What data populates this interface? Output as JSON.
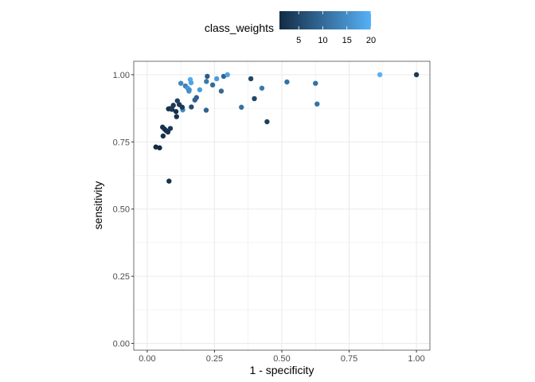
{
  "chart_data": {
    "type": "scatter",
    "xlabel": "1 - specificity",
    "ylabel": "sensitivity",
    "xlim": [
      -0.05,
      1.05
    ],
    "ylim": [
      -0.025,
      1.05
    ],
    "xticks": [
      "0.00",
      "0.25",
      "0.50",
      "0.75",
      "1.00"
    ],
    "yticks": [
      "0.00",
      "0.25",
      "0.50",
      "0.75",
      "1.00"
    ],
    "grid": true,
    "legend": {
      "title": "class_weights",
      "position": "top",
      "ticks": [
        "5",
        "10",
        "15",
        "20"
      ],
      "range": [
        1,
        20
      ],
      "low_color": "#132B43",
      "high_color": "#56B1F7"
    },
    "points": [
      {
        "x": 0.125,
        "y": 0.968,
        "w": 14
      },
      {
        "x": 0.16,
        "y": 0.982,
        "w": 19
      },
      {
        "x": 0.163,
        "y": 0.97,
        "w": 18
      },
      {
        "x": 0.142,
        "y": 0.958,
        "w": 13
      },
      {
        "x": 0.15,
        "y": 0.95,
        "w": 16
      },
      {
        "x": 0.156,
        "y": 0.944,
        "w": 16
      },
      {
        "x": 0.155,
        "y": 0.939,
        "w": 15
      },
      {
        "x": 0.195,
        "y": 0.944,
        "w": 17
      },
      {
        "x": 0.223,
        "y": 0.994,
        "w": 8
      },
      {
        "x": 0.22,
        "y": 0.975,
        "w": 12
      },
      {
        "x": 0.243,
        "y": 0.962,
        "w": 10
      },
      {
        "x": 0.258,
        "y": 0.985,
        "w": 17
      },
      {
        "x": 0.284,
        "y": 0.994,
        "w": 9
      },
      {
        "x": 0.298,
        "y": 1.0,
        "w": 18
      },
      {
        "x": 0.275,
        "y": 0.939,
        "w": 10
      },
      {
        "x": 0.385,
        "y": 0.985,
        "w": 5
      },
      {
        "x": 0.426,
        "y": 0.95,
        "w": 12
      },
      {
        "x": 0.398,
        "y": 0.911,
        "w": 5
      },
      {
        "x": 0.35,
        "y": 0.879,
        "w": 11
      },
      {
        "x": 0.445,
        "y": 0.825,
        "w": 4
      },
      {
        "x": 0.177,
        "y": 0.906,
        "w": 9
      },
      {
        "x": 0.183,
        "y": 0.915,
        "w": 9
      },
      {
        "x": 0.164,
        "y": 0.88,
        "w": 6
      },
      {
        "x": 0.219,
        "y": 0.868,
        "w": 9
      },
      {
        "x": 0.132,
        "y": 0.869,
        "w": 15
      },
      {
        "x": 0.13,
        "y": 0.879,
        "w": 3
      },
      {
        "x": 0.112,
        "y": 0.903,
        "w": 4
      },
      {
        "x": 0.119,
        "y": 0.889,
        "w": 3
      },
      {
        "x": 0.097,
        "y": 0.886,
        "w": 3
      },
      {
        "x": 0.085,
        "y": 0.874,
        "w": 3
      },
      {
        "x": 0.079,
        "y": 0.873,
        "w": 2
      },
      {
        "x": 0.092,
        "y": 0.871,
        "w": 3
      },
      {
        "x": 0.107,
        "y": 0.863,
        "w": 2
      },
      {
        "x": 0.109,
        "y": 0.844,
        "w": 2
      },
      {
        "x": 0.057,
        "y": 0.805,
        "w": 2
      },
      {
        "x": 0.064,
        "y": 0.798,
        "w": 2
      },
      {
        "x": 0.07,
        "y": 0.792,
        "w": 2
      },
      {
        "x": 0.077,
        "y": 0.787,
        "w": 2
      },
      {
        "x": 0.086,
        "y": 0.8,
        "w": 3
      },
      {
        "x": 0.059,
        "y": 0.772,
        "w": 2
      },
      {
        "x": 0.032,
        "y": 0.731,
        "w": 1
      },
      {
        "x": 0.046,
        "y": 0.728,
        "w": 1
      },
      {
        "x": 0.081,
        "y": 0.604,
        "w": 2
      },
      {
        "x": 0.625,
        "y": 0.968,
        "w": 11
      },
      {
        "x": 0.631,
        "y": 0.891,
        "w": 11
      },
      {
        "x": 0.519,
        "y": 0.973,
        "w": 11
      },
      {
        "x": 0.864,
        "y": 1.0,
        "w": 20
      },
      {
        "x": 1.0,
        "y": 1.0,
        "w": 3
      }
    ]
  }
}
